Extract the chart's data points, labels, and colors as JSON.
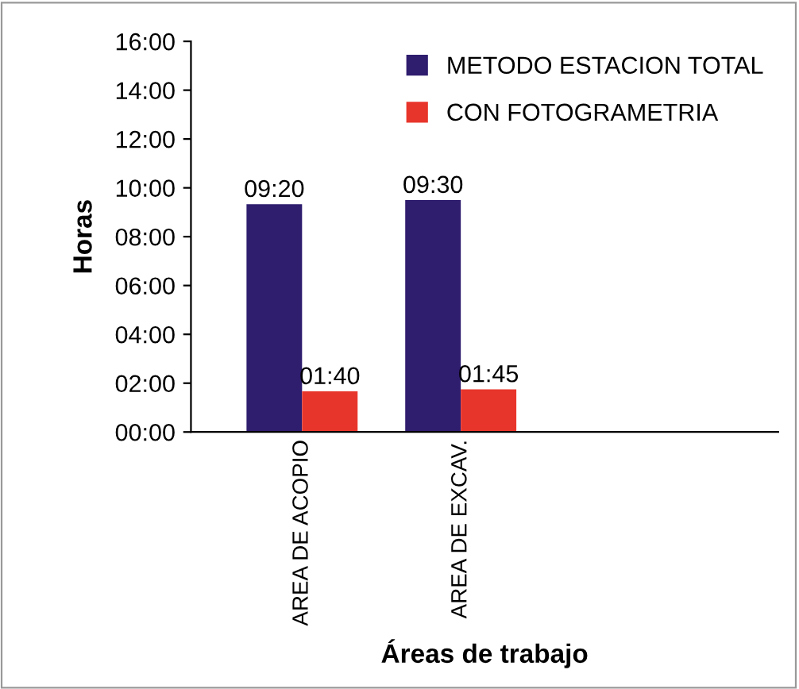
{
  "chart_data": {
    "type": "bar",
    "xlabel": "Áreas de trabajo",
    "ylabel": "Horas",
    "categories": [
      "AREA DE ACOPIO",
      "AREA DE EXCAV."
    ],
    "series": [
      {
        "name": "METODO ESTACION TOTAL",
        "color": "#2f1d6e",
        "values": [
          9.333,
          9.5
        ],
        "value_labels": [
          "09:20",
          "09:30"
        ]
      },
      {
        "name": "CON FOTOGRAMETRIA",
        "color": "#e8352b",
        "values": [
          1.667,
          1.75
        ],
        "value_labels": [
          "01:40",
          "01:45"
        ]
      }
    ],
    "ylim": [
      0,
      16
    ],
    "yticks": [
      {
        "value": 0,
        "label": "00:00"
      },
      {
        "value": 2,
        "label": "02:00"
      },
      {
        "value": 4,
        "label": "04:00"
      },
      {
        "value": 6,
        "label": "06:00"
      },
      {
        "value": 8,
        "label": "08:00"
      },
      {
        "value": 10,
        "label": "10:00"
      },
      {
        "value": 12,
        "label": "12:00"
      },
      {
        "value": 14,
        "label": "14:00"
      },
      {
        "value": 16,
        "label": "16:00"
      }
    ],
    "grid": false,
    "legend": "top right"
  }
}
